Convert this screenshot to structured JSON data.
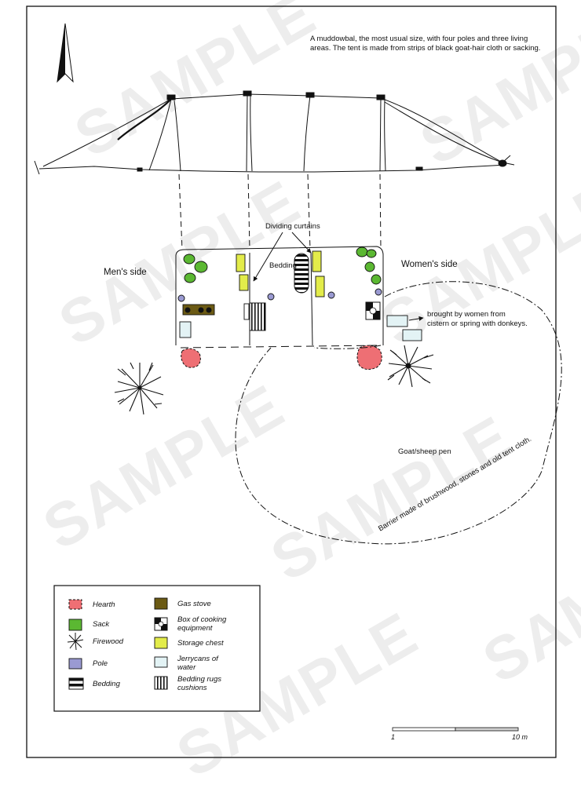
{
  "caption": "A muddowbal, the most usual size, with four poles and three living areas. The tent is made from strips of black goat-hair cloth or sacking.",
  "labels": {
    "mens_side": "Men's side",
    "womens_side": "Women's side",
    "dividing_curtains": "Dividing curtains",
    "bedding": "Bedding",
    "water_note": "brought by women from cistern or spring with donkeys.",
    "pen": "Goat/sheep pen",
    "barrier": "Barrier made of brushwood, stones and old tent cloth."
  },
  "legend": {
    "hearth": "Hearth",
    "sack": "Sack",
    "firewood": "Firewood",
    "pole": "Pole",
    "bedding": "Bedding",
    "gas_stove": "Gas stove",
    "box": "Box of cooking equipment",
    "storage_chest": "Storage chest",
    "jerrycans": "Jerrycans of water",
    "bedding_rugs": "Bedding rugs cushions"
  },
  "scale": {
    "start": "1",
    "end": "10 m"
  },
  "watermark": "SAMPLE",
  "colors": {
    "hearth": "#ee6f74",
    "sack": "#5bb832",
    "pole": "#9a9ad2",
    "gas_stove": "#6b5a14",
    "storage_chest": "#e3ec4a",
    "jerrycan": "#e3f3f5"
  }
}
